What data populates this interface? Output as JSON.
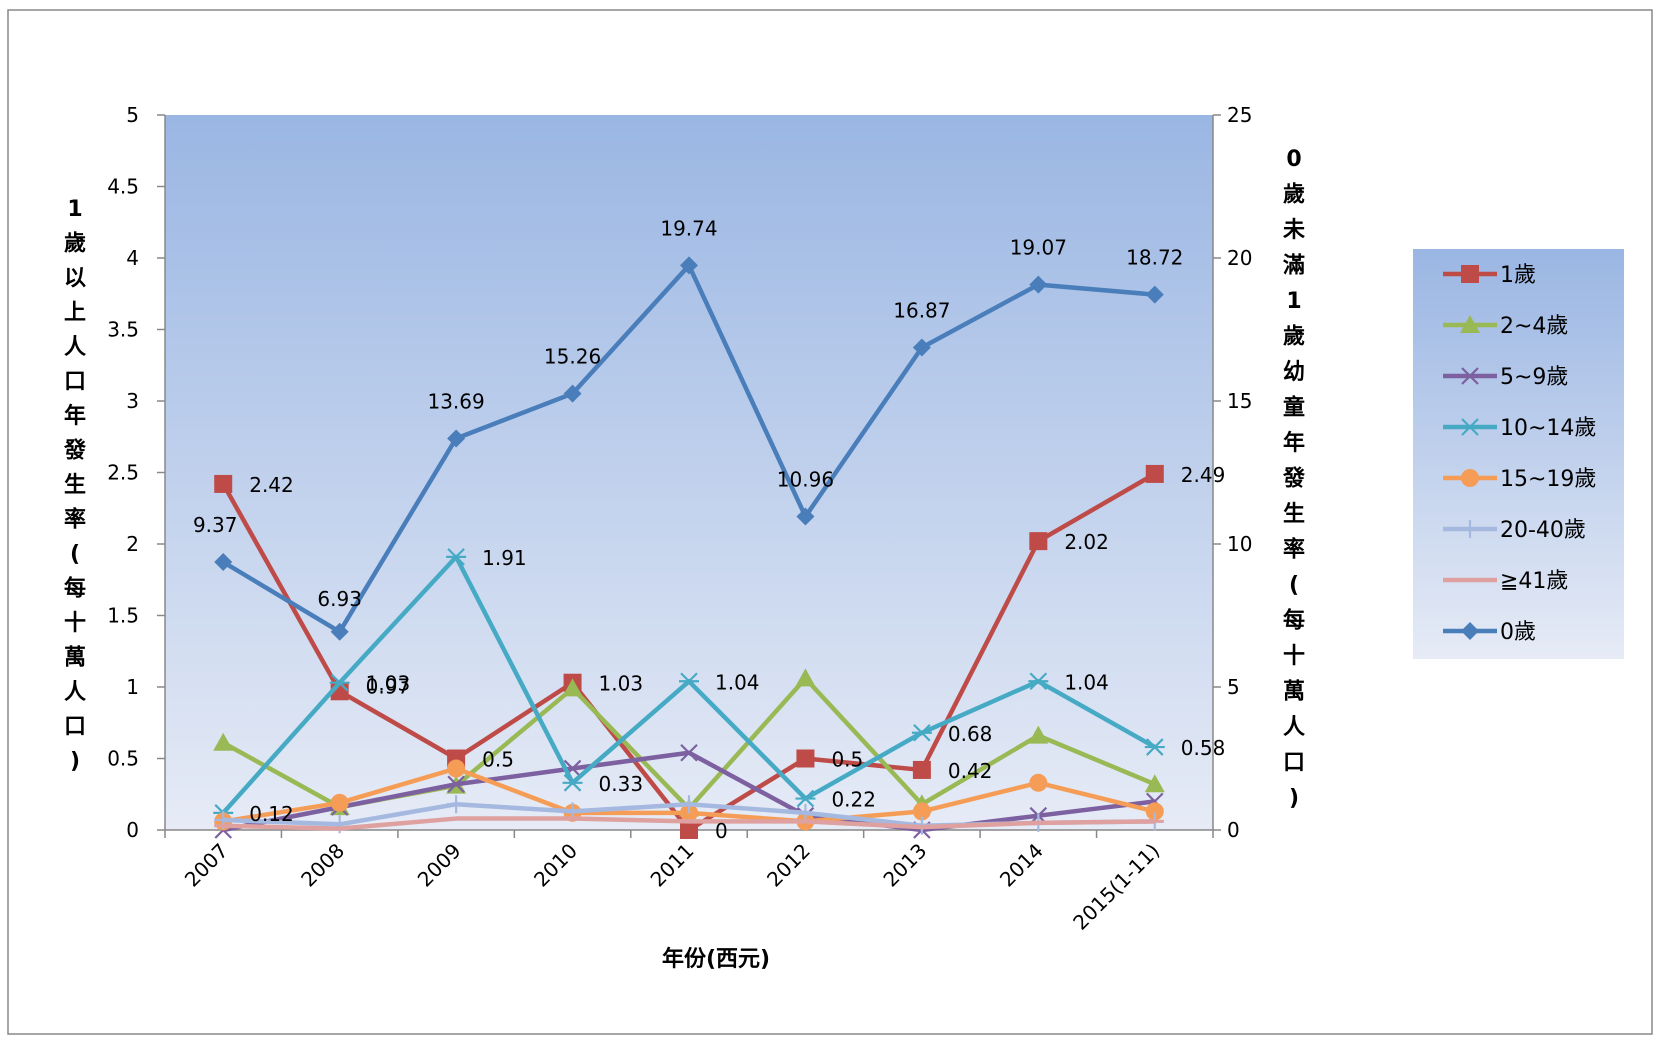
{
  "chart_data": {
    "type": "line",
    "title": "",
    "xlabel": "年份(西元)",
    "ylabel_left": [
      "1",
      "歲",
      "以",
      "上",
      "人",
      "口",
      "年",
      "發",
      "生",
      "率",
      "(",
      "每",
      "十",
      "萬",
      "人",
      "口",
      ")"
    ],
    "ylabel_right": [
      "0",
      "歲",
      "未",
      "滿",
      "1",
      "歲",
      "幼",
      "童",
      "年",
      "發",
      "生",
      "率",
      "(",
      "每",
      "十",
      "萬",
      "人",
      "口",
      ")"
    ],
    "categories": [
      "2007",
      "2008",
      "2009",
      "2010",
      "2011",
      "2012",
      "2013",
      "2014",
      "2015(1-11)"
    ],
    "ylim_left": [
      0,
      5
    ],
    "ylim_right": [
      0,
      25
    ],
    "left_ticks": [
      "0",
      "0.5",
      "1",
      "1.5",
      "2",
      "2.5",
      "3",
      "3.5",
      "4",
      "4.5",
      "5"
    ],
    "right_ticks": [
      "0",
      "5",
      "10",
      "15",
      "20",
      "25"
    ],
    "legend_position": "right",
    "series": [
      {
        "name": "1歲",
        "axis": "left",
        "color": "#be4b48",
        "marker": "square",
        "values": [
          2.42,
          0.97,
          0.5,
          1.03,
          0,
          0.5,
          0.42,
          2.02,
          2.49
        ],
        "labels": [
          "2.42",
          "0.97",
          "0.5",
          "1.03",
          "0",
          "0.5",
          "0.42",
          "2.02",
          "2.49"
        ]
      },
      {
        "name": "2~4歲",
        "axis": "left",
        "color": "#98b954",
        "marker": "triangle",
        "values": [
          0.61,
          0.16,
          0.31,
          0.99,
          0.15,
          1.06,
          0.18,
          0.66,
          0.32
        ]
      },
      {
        "name": "5~9歲",
        "axis": "left",
        "color": "#7d60a0",
        "marker": "x",
        "values": [
          0,
          0.16,
          0.32,
          0.43,
          0.54,
          0.1,
          0,
          0.1,
          0.2
        ]
      },
      {
        "name": "10~14歲",
        "axis": "left",
        "color": "#46aac5",
        "marker": "star",
        "values": [
          0.12,
          1.03,
          1.91,
          0.33,
          1.04,
          0.22,
          0.68,
          1.04,
          0.58
        ],
        "labels": [
          "0.12",
          "1.03",
          "1.91",
          "0.33",
          "1.04",
          "0.22",
          "0.68",
          "1.04",
          "0.58"
        ]
      },
      {
        "name": "15~19歲",
        "axis": "left",
        "color": "#f59d56",
        "marker": "circle",
        "values": [
          0.06,
          0.19,
          0.43,
          0.12,
          0.12,
          0.06,
          0.13,
          0.33,
          0.13
        ]
      },
      {
        "name": "20-40歲",
        "axis": "left",
        "color": "#a5b9e0",
        "marker": "plus",
        "values": [
          0.07,
          0.04,
          0.18,
          0.13,
          0.18,
          0.12,
          0.03,
          0.05,
          0.06
        ]
      },
      {
        "name": "≧41歲",
        "axis": "left",
        "color": "#dea1a0",
        "marker": "dash",
        "values": [
          0.03,
          0.01,
          0.08,
          0.08,
          0.06,
          0.06,
          0.02,
          0.05,
          0.06
        ]
      },
      {
        "name": "0歲",
        "axis": "right",
        "color": "#4a7ebb",
        "marker": "diamond",
        "values": [
          9.37,
          6.93,
          13.69,
          15.26,
          19.74,
          10.96,
          16.87,
          19.07,
          18.72
        ],
        "labels": [
          "9.37",
          "6.93",
          "13.69",
          "15.26",
          "19.74",
          "10.96",
          "16.87",
          "19.07",
          "18.72"
        ]
      }
    ]
  }
}
